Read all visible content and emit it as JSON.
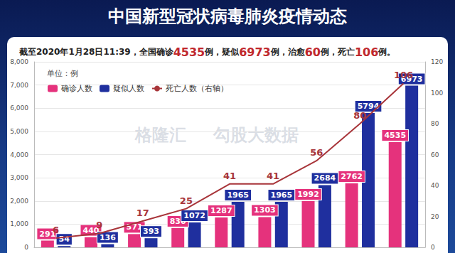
{
  "chart_data": {
    "type": "bar",
    "title": "中国新型冠状病毒肺炎疫情动态",
    "subtitle": "截至2020年1月28日11:39，全国确诊4535例，疑似6973例，治愈60例，死亡106例。",
    "y_label": "单位：例",
    "annotations": [
      "格隆汇",
      "勾股大数据"
    ],
    "categories": [
      null,
      null,
      null,
      null,
      null,
      null,
      null,
      null,
      null
    ],
    "series": [
      {
        "name": "确诊人数",
        "type": "bar",
        "color": "#e5327c",
        "values": [
          291,
          440,
          571,
          830,
          1287,
          1303,
          1992,
          2762,
          4535
        ]
      },
      {
        "name": "疑似人数",
        "type": "bar",
        "color": "#1f2f9e",
        "values": [
          54,
          136,
          393,
          1072,
          1965,
          1965,
          2684,
          5794,
          6973
        ]
      },
      {
        "name": "死亡人数（右轴）",
        "type": "line",
        "axis": "y2",
        "color": "#a8353a",
        "values": [
          6,
          9,
          17,
          25,
          41,
          41,
          56,
          80,
          106
        ]
      }
    ],
    "ylim": [
      0,
      8000
    ],
    "yticks": [
      0,
      1000,
      2000,
      3000,
      4000,
      5000,
      6000,
      7000,
      8000
    ],
    "y2lim": [
      0,
      120
    ],
    "y2ticks": [
      0,
      20,
      40,
      60,
      80,
      100,
      120
    ],
    "grid": true,
    "legend": "upper left",
    "data_labels": true
  }
}
